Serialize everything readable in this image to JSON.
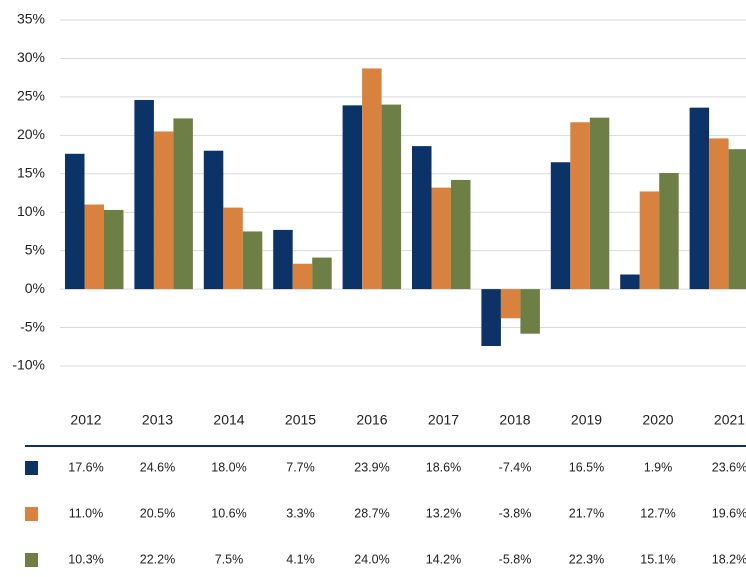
{
  "chart_data": {
    "type": "bar",
    "categories": [
      "2012",
      "2013",
      "2014",
      "2015",
      "2016",
      "2017",
      "2018",
      "2019",
      "2020",
      "2021"
    ],
    "series": [
      {
        "color": "#0b3368",
        "values": [
          17.6,
          24.6,
          18.0,
          7.7,
          23.9,
          18.6,
          -7.4,
          16.5,
          1.9,
          23.6
        ],
        "value_labels": [
          "17.6%",
          "24.6%",
          "18.0%",
          "7.7%",
          "23.9%",
          "18.6%",
          "-7.4%",
          "16.5%",
          "1.9%",
          "23.6%"
        ]
      },
      {
        "color": "#d9813f",
        "values": [
          11.0,
          20.5,
          10.6,
          3.3,
          28.7,
          13.2,
          -3.8,
          21.7,
          12.7,
          19.6
        ],
        "value_labels": [
          "11.0%",
          "20.5%",
          "10.6%",
          "3.3%",
          "28.7%",
          "13.2%",
          "-3.8%",
          "21.7%",
          "12.7%",
          "19.6%"
        ]
      },
      {
        "color": "#6e7f46",
        "values": [
          10.3,
          22.2,
          7.5,
          4.1,
          24.0,
          14.2,
          -5.8,
          22.3,
          15.1,
          18.2
        ],
        "value_labels": [
          "10.3%",
          "22.2%",
          "7.5%",
          "4.1%",
          "24.0%",
          "14.2%",
          "-5.8%",
          "22.3%",
          "15.1%",
          "18.2%"
        ]
      }
    ],
    "ylim": [
      -10,
      35
    ],
    "yticks": [
      {
        "value": -10,
        "label": "-10%"
      },
      {
        "value": -5,
        "label": "-5%"
      },
      {
        "value": 0,
        "label": "0%"
      },
      {
        "value": 5,
        "label": "5%"
      },
      {
        "value": 10,
        "label": "10%"
      },
      {
        "value": 15,
        "label": "15%"
      },
      {
        "value": 20,
        "label": "20%"
      },
      {
        "value": 25,
        "label": "25%"
      },
      {
        "value": 30,
        "label": "30%"
      },
      {
        "value": 35,
        "label": "35%"
      }
    ],
    "grid": true
  }
}
